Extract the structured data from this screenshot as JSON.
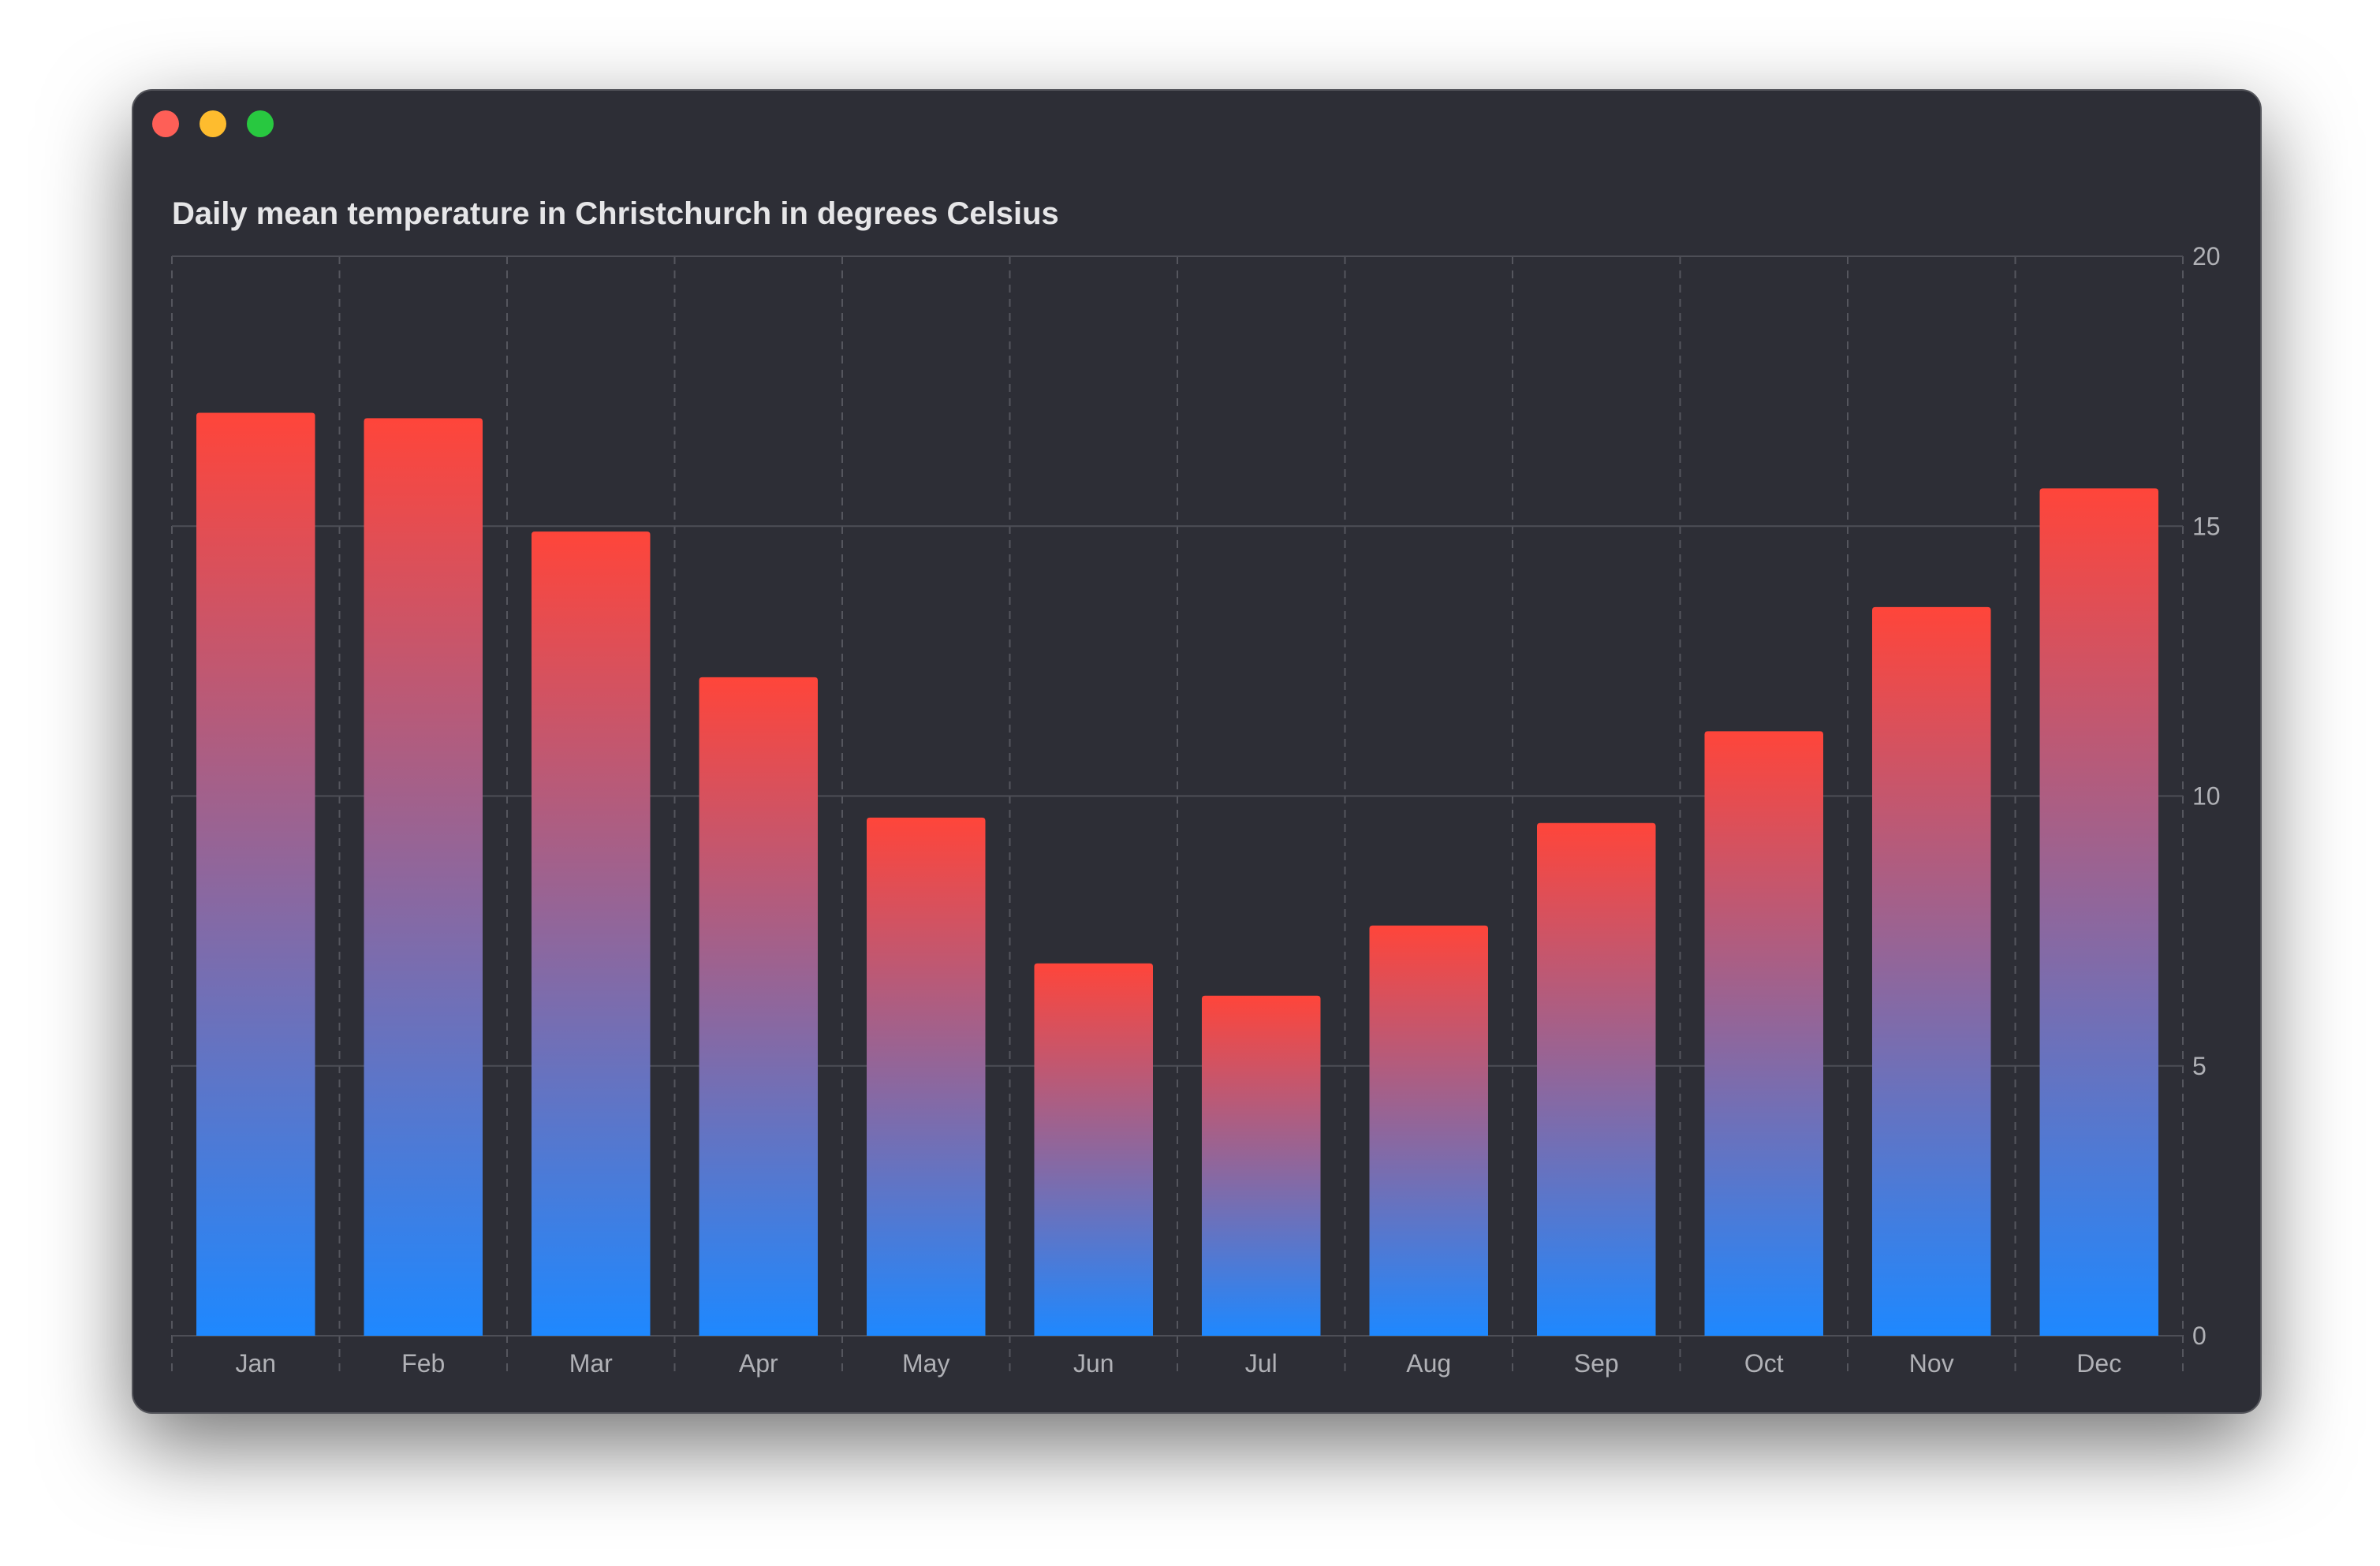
{
  "window": {
    "controls": [
      "close",
      "minimize",
      "maximize"
    ]
  },
  "chart_data": {
    "type": "bar",
    "title": "Daily mean temperature in Christchurch in degrees Celsius",
    "categories": [
      "Jan",
      "Feb",
      "Mar",
      "Apr",
      "May",
      "Jun",
      "Jul",
      "Aug",
      "Sep",
      "Oct",
      "Nov",
      "Dec"
    ],
    "values": [
      17.1,
      17.0,
      14.9,
      12.2,
      9.6,
      6.9,
      6.3,
      7.6,
      9.5,
      11.2,
      13.5,
      15.7
    ],
    "xlabel": "",
    "ylabel": "",
    "ylim": [
      0,
      20
    ],
    "yticks": [
      "0",
      "5",
      "10",
      "15",
      "20"
    ],
    "y_axis_side": "right",
    "grid": true,
    "colors": {
      "gradient_top": "#ff453a",
      "gradient_bottom": "#1e88ff",
      "background": "#2d2e36"
    }
  }
}
